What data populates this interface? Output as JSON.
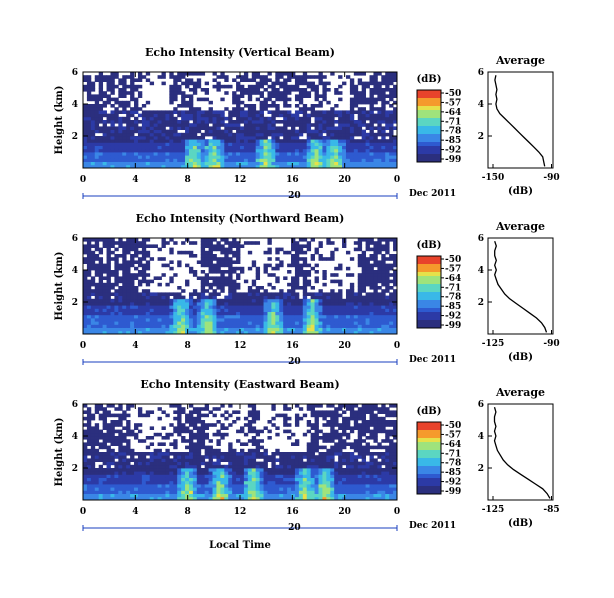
{
  "chart_data": [
    {
      "type": "heatmap",
      "title": "Echo Intensity (Vertical Beam)",
      "ylabel": "Height (km)",
      "x_ticks": [
        "0",
        "4",
        "8",
        "12",
        "16",
        "20",
        "0"
      ],
      "y_ticks": [
        "6",
        "4",
        "2"
      ],
      "x_range_hours": [
        0,
        24
      ],
      "y_range_km": [
        0,
        6
      ],
      "date_marker": "20",
      "date_label": "Dec 2011",
      "colorbar": {
        "unit": "(dB)",
        "ticks": [
          "-50",
          "-57",
          "-64",
          "-71",
          "-78",
          "-85",
          "-92",
          "-99"
        ]
      },
      "profile": {
        "title": "Average",
        "xlabel": "(dB)",
        "x_ticks": [
          "-150",
          "-90"
        ],
        "xlim": [
          -150,
          -90
        ],
        "y_ticks": [
          "6",
          "4",
          "2"
        ],
        "points": [
          [
            -97,
            0.1
          ],
          [
            -98,
            0.4
          ],
          [
            -99,
            0.7
          ],
          [
            -103,
            1.0
          ],
          [
            -108,
            1.3
          ],
          [
            -113,
            1.6
          ],
          [
            -118,
            1.9
          ],
          [
            -123,
            2.2
          ],
          [
            -128,
            2.5
          ],
          [
            -133,
            2.8
          ],
          [
            -138,
            3.1
          ],
          [
            -143,
            3.4
          ],
          [
            -146,
            3.7
          ],
          [
            -147,
            4.0
          ],
          [
            -146,
            4.3
          ],
          [
            -147,
            4.6
          ],
          [
            -146,
            4.9
          ],
          [
            -147,
            5.2
          ],
          [
            -148,
            5.5
          ],
          [
            -147,
            5.8
          ]
        ]
      },
      "field": {
        "seed": 11,
        "base_top": 1.8,
        "clear_top": 3.6,
        "speck": 0.35,
        "plume_hours": [
          8.5,
          10,
          14,
          17.8,
          19.2
        ],
        "clear_spans": [
          [
            4.5,
            6.5
          ],
          [
            9.0,
            11.5
          ],
          [
            18.5,
            20.5
          ]
        ]
      }
    },
    {
      "type": "heatmap",
      "title": "Echo Intensity (Northward Beam)",
      "ylabel": "Height (km)",
      "x_ticks": [
        "0",
        "4",
        "8",
        "12",
        "16",
        "20",
        "0"
      ],
      "y_ticks": [
        "6",
        "4",
        "2"
      ],
      "x_range_hours": [
        0,
        24
      ],
      "y_range_km": [
        0,
        6
      ],
      "date_marker": "20",
      "date_label": "Dec 2011",
      "colorbar": {
        "unit": "(dB)",
        "ticks": [
          "-50",
          "-57",
          "-64",
          "-71",
          "-78",
          "-85",
          "-92",
          "-99"
        ]
      },
      "profile": {
        "title": "Average",
        "xlabel": "(dB)",
        "x_ticks": [
          "-125",
          "-90"
        ],
        "xlim": [
          -125,
          -90
        ],
        "y_ticks": [
          "6",
          "4",
          "2"
        ],
        "points": [
          [
            -93,
            0.1
          ],
          [
            -94,
            0.4
          ],
          [
            -96,
            0.7
          ],
          [
            -99,
            1.0
          ],
          [
            -103,
            1.3
          ],
          [
            -107,
            1.6
          ],
          [
            -111,
            1.9
          ],
          [
            -115,
            2.2
          ],
          [
            -118,
            2.5
          ],
          [
            -120,
            2.8
          ],
          [
            -122,
            3.1
          ],
          [
            -123,
            3.4
          ],
          [
            -124,
            3.7
          ],
          [
            -123,
            4.0
          ],
          [
            -124,
            4.3
          ],
          [
            -123,
            4.6
          ],
          [
            -124,
            4.9
          ],
          [
            -124,
            5.2
          ],
          [
            -123,
            5.5
          ],
          [
            -124,
            5.8
          ]
        ]
      },
      "field": {
        "seed": 23,
        "base_top": 2.2,
        "clear_top": 2.6,
        "speck": 0.25,
        "plume_hours": [
          7.5,
          9.5,
          14.5,
          17.5
        ],
        "clear_spans": [
          [
            5.0,
            9.0
          ],
          [
            12.0,
            16.0
          ],
          [
            17.0,
            21.0
          ]
        ]
      }
    },
    {
      "type": "heatmap",
      "title": "Echo Intensity (Eastward Beam)",
      "ylabel": "Height (km)",
      "x_ticks": [
        "0",
        "4",
        "8",
        "12",
        "16",
        "20",
        "0"
      ],
      "y_ticks": [
        "6",
        "4",
        "2"
      ],
      "x_range_hours": [
        0,
        24
      ],
      "y_range_km": [
        0,
        6
      ],
      "date_marker": "20",
      "date_label": "Dec 2011",
      "xlabel": "Local Time",
      "colorbar": {
        "unit": "(dB)",
        "ticks": [
          "-50",
          "-57",
          "-64",
          "-71",
          "-78",
          "-85",
          "-92",
          "-99"
        ]
      },
      "profile": {
        "title": "Average",
        "xlabel": "(dB)",
        "x_ticks": [
          "-125",
          "-85"
        ],
        "xlim": [
          -125,
          -85
        ],
        "y_ticks": [
          "6",
          "4",
          "2"
        ],
        "points": [
          [
            -86,
            0.1
          ],
          [
            -88,
            0.4
          ],
          [
            -91,
            0.7
          ],
          [
            -96,
            1.0
          ],
          [
            -101,
            1.3
          ],
          [
            -106,
            1.6
          ],
          [
            -111,
            1.9
          ],
          [
            -115,
            2.2
          ],
          [
            -118,
            2.5
          ],
          [
            -120,
            2.8
          ],
          [
            -122,
            3.1
          ],
          [
            -123,
            3.4
          ],
          [
            -124,
            3.7
          ],
          [
            -123,
            4.0
          ],
          [
            -124,
            4.3
          ],
          [
            -123,
            4.6
          ],
          [
            -124,
            4.9
          ],
          [
            -124,
            5.2
          ],
          [
            -123,
            5.5
          ],
          [
            -124,
            5.8
          ]
        ]
      },
      "field": {
        "seed": 37,
        "base_top": 2.0,
        "clear_top": 3.0,
        "speck": 0.3,
        "plume_hours": [
          8.0,
          10.5,
          13.0,
          17.0,
          18.5
        ],
        "clear_spans": [
          [
            3.5,
            7.0
          ],
          [
            9.5,
            12.5
          ],
          [
            13.5,
            17.0
          ]
        ]
      }
    }
  ],
  "colors": {
    "palette": [
      "#2b2f7e",
      "#2c3aa6",
      "#2e5ad0",
      "#3a86e6",
      "#39b8e8",
      "#5bd6c2",
      "#9fe37c",
      "#e6e14a",
      "#f59a2c",
      "#e8432b"
    ],
    "background_echo": "#2b2f7e",
    "date_line": "#1a3fbf"
  }
}
